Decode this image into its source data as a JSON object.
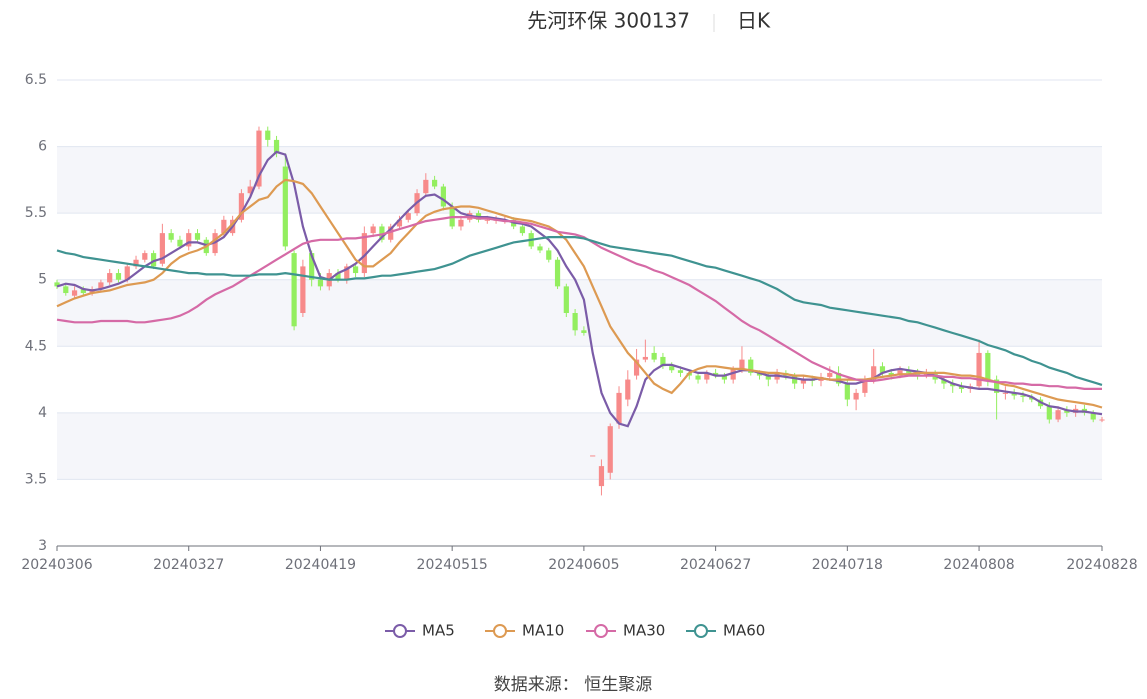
{
  "chart_data": {
    "type": "candlestick",
    "title": "先河环保 300137",
    "subtitle": "日K",
    "source": "数据来源： 恒生聚源",
    "up_color": "#f78a8a",
    "down_color": "#93ee5f",
    "grid": true,
    "ylim": [
      3,
      6.5
    ],
    "yticks": [
      3,
      3.5,
      4,
      4.5,
      5,
      5.5,
      6,
      6.5
    ],
    "categories": [
      "20240306",
      null,
      null,
      null,
      null,
      null,
      null,
      null,
      null,
      null,
      null,
      null,
      null,
      null,
      null,
      "20240327",
      null,
      null,
      null,
      null,
      null,
      null,
      null,
      null,
      null,
      null,
      null,
      null,
      null,
      null,
      "20240419",
      null,
      null,
      null,
      null,
      null,
      null,
      null,
      null,
      null,
      null,
      null,
      null,
      null,
      null,
      "20240515",
      null,
      null,
      null,
      null,
      null,
      null,
      null,
      null,
      null,
      null,
      null,
      null,
      null,
      null,
      "20240605",
      null,
      null,
      null,
      null,
      null,
      null,
      null,
      null,
      null,
      null,
      null,
      null,
      null,
      null,
      "20240627",
      null,
      null,
      null,
      null,
      null,
      null,
      null,
      null,
      null,
      null,
      null,
      null,
      null,
      null,
      "20240718",
      null,
      null,
      null,
      null,
      null,
      null,
      null,
      null,
      null,
      null,
      null,
      null,
      null,
      null,
      "20240808",
      null,
      null,
      null,
      null,
      null,
      null,
      null,
      null,
      null,
      null,
      null,
      null,
      null,
      "20240828"
    ],
    "open": [
      4.98,
      4.95,
      4.88,
      4.93,
      4.9,
      4.93,
      4.98,
      5.05,
      5.0,
      5.1,
      5.15,
      5.2,
      5.12,
      5.35,
      5.3,
      5.25,
      5.35,
      5.3,
      5.2,
      5.35,
      5.35,
      5.45,
      5.65,
      5.7,
      6.12,
      6.05,
      5.85,
      5.2,
      4.75,
      5.2,
      5.0,
      4.95,
      5.05,
      5.0,
      5.1,
      5.05,
      5.35,
      5.4,
      5.3,
      5.4,
      5.45,
      5.5,
      5.65,
      5.75,
      5.7,
      5.55,
      5.4,
      5.45,
      5.5,
      5.45,
      5.45,
      5.45,
      5.45,
      5.4,
      5.35,
      5.25,
      5.22,
      5.15,
      4.95,
      4.75,
      4.62,
      3.68,
      3.45,
      3.55,
      3.92,
      4.1,
      4.28,
      4.4,
      4.45,
      4.42,
      4.35,
      4.32,
      4.3,
      4.28,
      4.25,
      4.3,
      4.28,
      4.25,
      4.33,
      4.4,
      4.3,
      4.28,
      4.25,
      4.3,
      4.28,
      4.22,
      4.25,
      4.24,
      4.27,
      4.3,
      4.22,
      4.1,
      4.15,
      4.25,
      4.35,
      4.3,
      4.28,
      4.32,
      4.3,
      4.28,
      4.3,
      4.25,
      4.22,
      4.2,
      4.18,
      4.2,
      4.45,
      4.25,
      4.15,
      4.15,
      4.13,
      4.12,
      4.1,
      4.05,
      3.95,
      4.02,
      4.0,
      4.03,
      4.0,
      3.95
    ],
    "close": [
      4.95,
      4.9,
      4.92,
      4.9,
      4.93,
      4.98,
      5.05,
      5.0,
      5.1,
      5.15,
      5.2,
      5.1,
      5.35,
      5.3,
      5.25,
      5.35,
      5.3,
      5.2,
      5.35,
      5.45,
      5.45,
      5.65,
      5.7,
      6.12,
      6.05,
      5.95,
      5.25,
      4.65,
      5.1,
      5.0,
      4.95,
      5.05,
      5.0,
      5.1,
      5.05,
      5.35,
      5.4,
      5.3,
      5.4,
      5.45,
      5.5,
      5.65,
      5.75,
      5.7,
      5.55,
      5.4,
      5.45,
      5.5,
      5.45,
      5.45,
      5.45,
      5.45,
      5.4,
      5.35,
      5.25,
      5.22,
      5.15,
      4.95,
      4.75,
      4.62,
      4.6,
      3.68,
      3.6,
      3.9,
      4.15,
      4.25,
      4.4,
      4.42,
      4.4,
      4.35,
      4.32,
      4.3,
      4.28,
      4.25,
      4.3,
      4.28,
      4.25,
      4.33,
      4.4,
      4.3,
      4.28,
      4.25,
      4.3,
      4.28,
      4.22,
      4.25,
      4.24,
      4.27,
      4.3,
      4.22,
      4.1,
      4.15,
      4.25,
      4.35,
      4.3,
      4.28,
      4.32,
      4.3,
      4.28,
      4.3,
      4.25,
      4.22,
      4.2,
      4.18,
      4.2,
      4.45,
      4.25,
      4.15,
      4.15,
      4.13,
      4.12,
      4.1,
      4.05,
      3.95,
      4.02,
      4.0,
      4.03,
      4.0,
      3.95,
      3.95
    ],
    "low": [
      4.93,
      4.88,
      4.86,
      4.88,
      4.88,
      4.91,
      4.96,
      4.98,
      4.98,
      5.08,
      5.13,
      5.08,
      5.1,
      5.28,
      5.23,
      5.22,
      5.28,
      5.18,
      5.18,
      5.33,
      5.33,
      5.43,
      5.62,
      5.68,
      6.0,
      5.92,
      5.22,
      4.62,
      4.72,
      4.95,
      4.92,
      4.92,
      4.98,
      4.97,
      5.02,
      5.02,
      5.32,
      5.28,
      5.28,
      5.38,
      5.43,
      5.48,
      5.62,
      5.68,
      5.52,
      5.38,
      5.37,
      5.43,
      5.43,
      5.42,
      5.42,
      5.42,
      5.38,
      5.33,
      5.23,
      5.2,
      5.13,
      4.93,
      4.72,
      4.58,
      4.58,
      3.68,
      3.38,
      3.5,
      3.88,
      4.05,
      4.25,
      4.38,
      4.38,
      4.33,
      4.3,
      4.27,
      4.25,
      4.22,
      4.22,
      4.26,
      4.22,
      4.22,
      4.3,
      4.28,
      4.25,
      4.2,
      4.22,
      4.25,
      4.18,
      4.18,
      4.2,
      4.2,
      4.24,
      4.2,
      4.05,
      4.02,
      4.12,
      4.22,
      4.28,
      4.25,
      4.26,
      4.28,
      4.25,
      4.26,
      4.22,
      4.18,
      4.15,
      4.15,
      4.15,
      4.18,
      4.2,
      3.95,
      4.1,
      4.1,
      4.08,
      4.08,
      4.03,
      3.92,
      3.93,
      3.97,
      3.97,
      3.98,
      3.93,
      3.93
    ],
    "high": [
      5.0,
      4.97,
      4.95,
      4.95,
      4.95,
      5.0,
      5.08,
      5.08,
      5.12,
      5.18,
      5.22,
      5.22,
      5.42,
      5.38,
      5.33,
      5.38,
      5.38,
      5.32,
      5.38,
      5.48,
      5.48,
      5.68,
      5.75,
      6.15,
      6.15,
      6.08,
      5.95,
      5.22,
      5.15,
      5.22,
      5.05,
      5.08,
      5.08,
      5.12,
      5.12,
      5.4,
      5.42,
      5.42,
      5.42,
      5.48,
      5.52,
      5.68,
      5.8,
      5.78,
      5.72,
      5.58,
      5.48,
      5.52,
      5.52,
      5.48,
      5.48,
      5.48,
      5.47,
      5.42,
      5.37,
      5.27,
      5.24,
      5.17,
      4.97,
      4.78,
      4.65,
      3.68,
      3.65,
      3.92,
      4.2,
      4.32,
      4.48,
      4.55,
      4.5,
      4.45,
      4.38,
      4.35,
      4.32,
      4.3,
      4.32,
      4.33,
      4.3,
      4.35,
      4.5,
      4.42,
      4.32,
      4.3,
      4.33,
      4.32,
      4.3,
      4.28,
      4.28,
      4.3,
      4.35,
      4.35,
      4.25,
      4.18,
      4.28,
      4.48,
      4.38,
      4.33,
      4.35,
      4.35,
      4.33,
      4.33,
      4.32,
      4.27,
      4.25,
      4.23,
      4.22,
      4.55,
      4.47,
      4.28,
      4.2,
      4.18,
      4.16,
      4.14,
      4.12,
      4.08,
      4.05,
      4.05,
      4.06,
      4.06,
      4.02,
      3.97
    ],
    "series": [
      {
        "name": "MA5",
        "color": "#7b5ca8",
        "values": [
          4.95,
          4.97,
          4.96,
          4.93,
          4.92,
          4.93,
          4.95,
          4.97,
          5.0,
          5.05,
          5.1,
          5.14,
          5.16,
          5.2,
          5.24,
          5.28,
          5.28,
          5.26,
          5.28,
          5.32,
          5.4,
          5.5,
          5.62,
          5.78,
          5.9,
          5.96,
          5.94,
          5.72,
          5.4,
          5.18,
          5.02,
          5.0,
          5.05,
          5.08,
          5.12,
          5.18,
          5.25,
          5.32,
          5.38,
          5.45,
          5.52,
          5.58,
          5.63,
          5.64,
          5.6,
          5.55,
          5.5,
          5.48,
          5.47,
          5.47,
          5.46,
          5.45,
          5.43,
          5.42,
          5.4,
          5.35,
          5.3,
          5.22,
          5.1,
          5.0,
          4.85,
          4.45,
          4.15,
          4.0,
          3.92,
          3.9,
          4.05,
          4.25,
          4.32,
          4.36,
          4.36,
          4.34,
          4.32,
          4.3,
          4.3,
          4.28,
          4.28,
          4.3,
          4.32,
          4.32,
          4.3,
          4.28,
          4.28,
          4.27,
          4.26,
          4.25,
          4.25,
          4.26,
          4.25,
          4.24,
          4.22,
          4.22,
          4.24,
          4.26,
          4.3,
          4.32,
          4.33,
          4.32,
          4.31,
          4.3,
          4.28,
          4.25,
          4.22,
          4.2,
          4.19,
          4.18,
          4.18,
          4.17,
          4.16,
          4.15,
          4.14,
          4.12,
          4.08,
          4.05,
          4.04,
          4.02,
          4.01,
          4.01,
          4.0,
          3.99
        ]
      },
      {
        "name": "MA10",
        "color": "#dd9a52",
        "values": [
          4.8,
          4.83,
          4.86,
          4.88,
          4.9,
          4.91,
          4.92,
          4.94,
          4.96,
          4.97,
          4.98,
          5.0,
          5.05,
          5.12,
          5.17,
          5.2,
          5.22,
          5.25,
          5.3,
          5.35,
          5.42,
          5.5,
          5.55,
          5.6,
          5.62,
          5.7,
          5.75,
          5.74,
          5.72,
          5.65,
          5.55,
          5.45,
          5.35,
          5.25,
          5.15,
          5.1,
          5.1,
          5.15,
          5.2,
          5.28,
          5.35,
          5.42,
          5.48,
          5.51,
          5.53,
          5.54,
          5.55,
          5.55,
          5.54,
          5.52,
          5.5,
          5.48,
          5.46,
          5.45,
          5.44,
          5.42,
          5.4,
          5.36,
          5.3,
          5.2,
          5.1,
          4.95,
          4.8,
          4.65,
          4.55,
          4.45,
          4.38,
          4.3,
          4.22,
          4.18,
          4.15,
          4.22,
          4.3,
          4.33,
          4.35,
          4.35,
          4.34,
          4.33,
          4.33,
          4.32,
          4.31,
          4.3,
          4.3,
          4.29,
          4.28,
          4.28,
          4.27,
          4.26,
          4.25,
          4.25,
          4.25,
          4.25,
          4.25,
          4.26,
          4.27,
          4.28,
          4.29,
          4.29,
          4.3,
          4.3,
          4.3,
          4.3,
          4.29,
          4.28,
          4.28,
          4.27,
          4.25,
          4.23,
          4.21,
          4.2,
          4.18,
          4.16,
          4.14,
          4.12,
          4.1,
          4.09,
          4.08,
          4.07,
          4.06,
          4.04
        ]
      },
      {
        "name": "MA30",
        "color": "#d56aa6",
        "values": [
          4.7,
          4.69,
          4.68,
          4.68,
          4.68,
          4.69,
          4.69,
          4.69,
          4.69,
          4.68,
          4.68,
          4.69,
          4.7,
          4.71,
          4.73,
          4.76,
          4.8,
          4.85,
          4.89,
          4.92,
          4.95,
          4.99,
          5.03,
          5.07,
          5.11,
          5.15,
          5.19,
          5.23,
          5.27,
          5.29,
          5.3,
          5.3,
          5.3,
          5.31,
          5.31,
          5.32,
          5.33,
          5.34,
          5.36,
          5.38,
          5.4,
          5.42,
          5.44,
          5.45,
          5.46,
          5.47,
          5.47,
          5.47,
          5.46,
          5.46,
          5.45,
          5.44,
          5.44,
          5.43,
          5.42,
          5.4,
          5.38,
          5.36,
          5.35,
          5.34,
          5.32,
          5.28,
          5.24,
          5.21,
          5.18,
          5.15,
          5.12,
          5.1,
          5.07,
          5.05,
          5.02,
          4.99,
          4.96,
          4.92,
          4.88,
          4.84,
          4.79,
          4.74,
          4.69,
          4.65,
          4.62,
          4.58,
          4.54,
          4.5,
          4.46,
          4.42,
          4.38,
          4.35,
          4.32,
          4.29,
          4.27,
          4.25,
          4.24,
          4.24,
          4.25,
          4.26,
          4.27,
          4.28,
          4.28,
          4.28,
          4.28,
          4.27,
          4.27,
          4.26,
          4.26,
          4.25,
          4.24,
          4.23,
          4.23,
          4.22,
          4.22,
          4.21,
          4.21,
          4.2,
          4.2,
          4.19,
          4.19,
          4.18,
          4.18,
          4.18
        ]
      },
      {
        "name": "MA60",
        "color": "#3f9391",
        "values": [
          5.22,
          5.2,
          5.19,
          5.17,
          5.16,
          5.15,
          5.14,
          5.13,
          5.12,
          5.11,
          5.1,
          5.09,
          5.08,
          5.07,
          5.06,
          5.05,
          5.05,
          5.04,
          5.04,
          5.04,
          5.03,
          5.03,
          5.03,
          5.04,
          5.04,
          5.04,
          5.05,
          5.04,
          5.03,
          5.02,
          5.01,
          5.0,
          5.0,
          5.0,
          5.01,
          5.01,
          5.02,
          5.03,
          5.03,
          5.04,
          5.05,
          5.06,
          5.07,
          5.08,
          5.1,
          5.12,
          5.15,
          5.18,
          5.2,
          5.22,
          5.24,
          5.26,
          5.28,
          5.29,
          5.3,
          5.31,
          5.32,
          5.32,
          5.32,
          5.32,
          5.31,
          5.29,
          5.27,
          5.25,
          5.24,
          5.23,
          5.22,
          5.21,
          5.2,
          5.19,
          5.18,
          5.16,
          5.14,
          5.12,
          5.1,
          5.09,
          5.07,
          5.05,
          5.03,
          5.01,
          4.99,
          4.96,
          4.93,
          4.89,
          4.85,
          4.83,
          4.82,
          4.81,
          4.79,
          4.78,
          4.77,
          4.76,
          4.75,
          4.74,
          4.73,
          4.72,
          4.71,
          4.69,
          4.68,
          4.66,
          4.64,
          4.62,
          4.6,
          4.58,
          4.56,
          4.54,
          4.51,
          4.49,
          4.47,
          4.44,
          4.42,
          4.39,
          4.37,
          4.34,
          4.32,
          4.3,
          4.27,
          4.25,
          4.23,
          4.21
        ]
      }
    ]
  }
}
